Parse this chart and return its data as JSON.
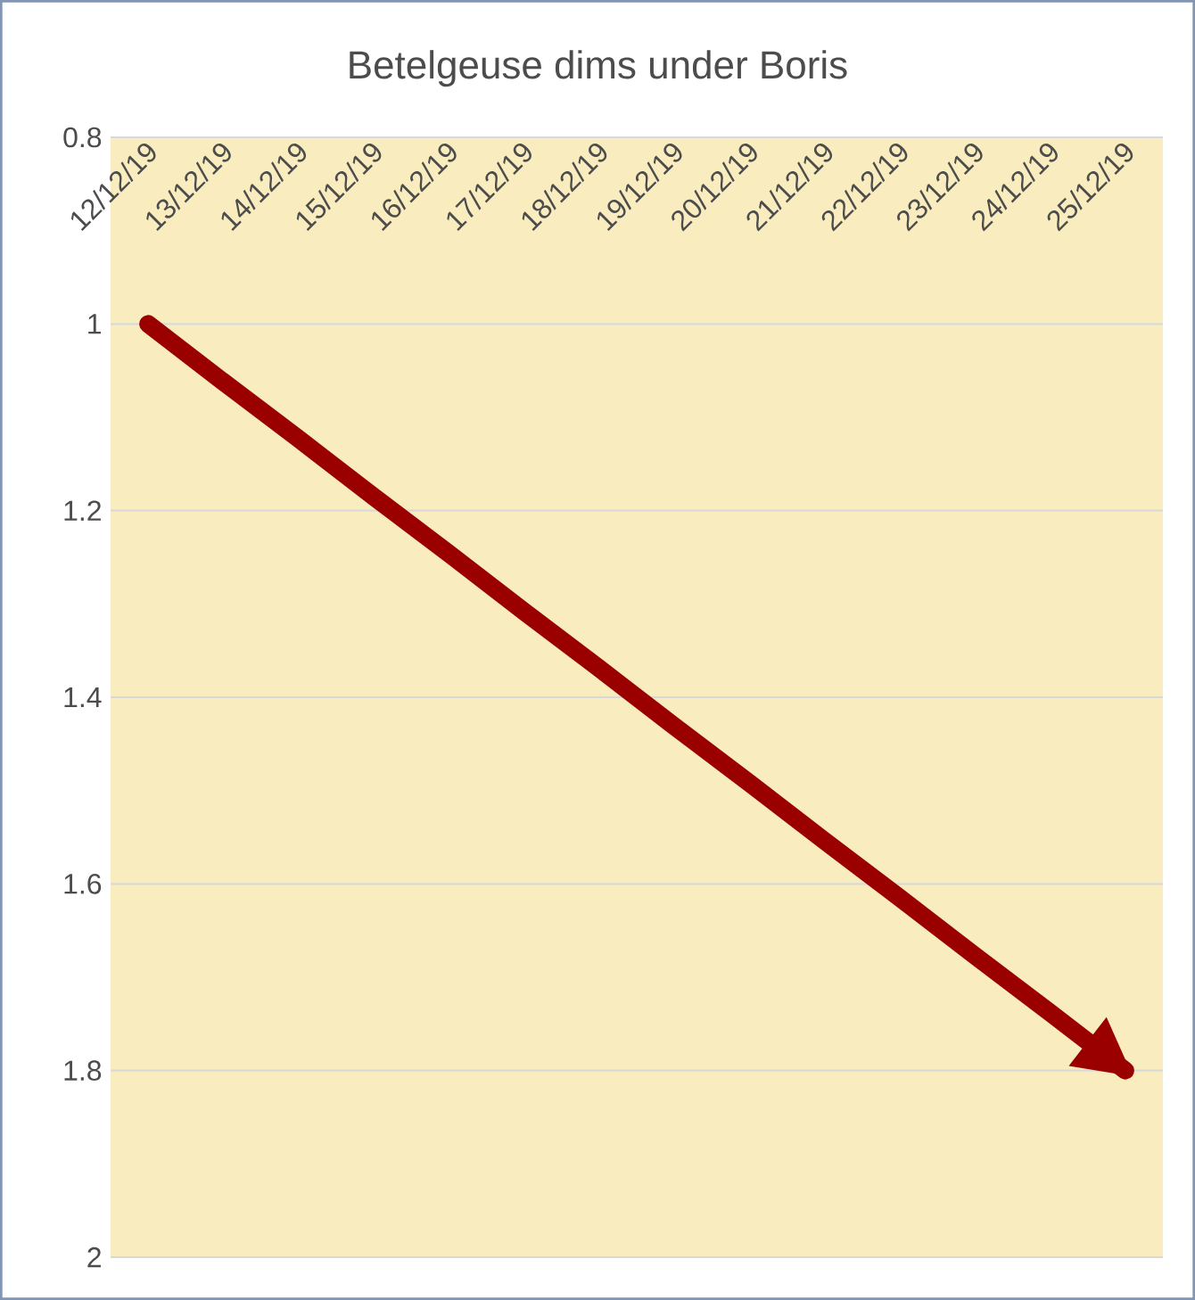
{
  "chart_data": {
    "type": "line",
    "title": "Betelgeuse dims under Boris",
    "categories": [
      "12/12/19",
      "13/12/19",
      "14/12/19",
      "15/12/19",
      "16/12/19",
      "17/12/19",
      "18/12/19",
      "19/12/19",
      "20/12/19",
      "21/12/19",
      "22/12/19",
      "23/12/19",
      "24/12/19",
      "25/12/19"
    ],
    "values": [
      1.0,
      1.062,
      1.123,
      1.185,
      1.246,
      1.308,
      1.369,
      1.431,
      1.492,
      1.554,
      1.615,
      1.677,
      1.738,
      1.8
    ],
    "color": "#9b0000",
    "ylim": [
      2,
      0.8
    ],
    "yticks": [
      0.8,
      1,
      1.2,
      1.4,
      1.6,
      1.8,
      2
    ],
    "grid": "y",
    "marker": "none",
    "line_style": "solid"
  }
}
